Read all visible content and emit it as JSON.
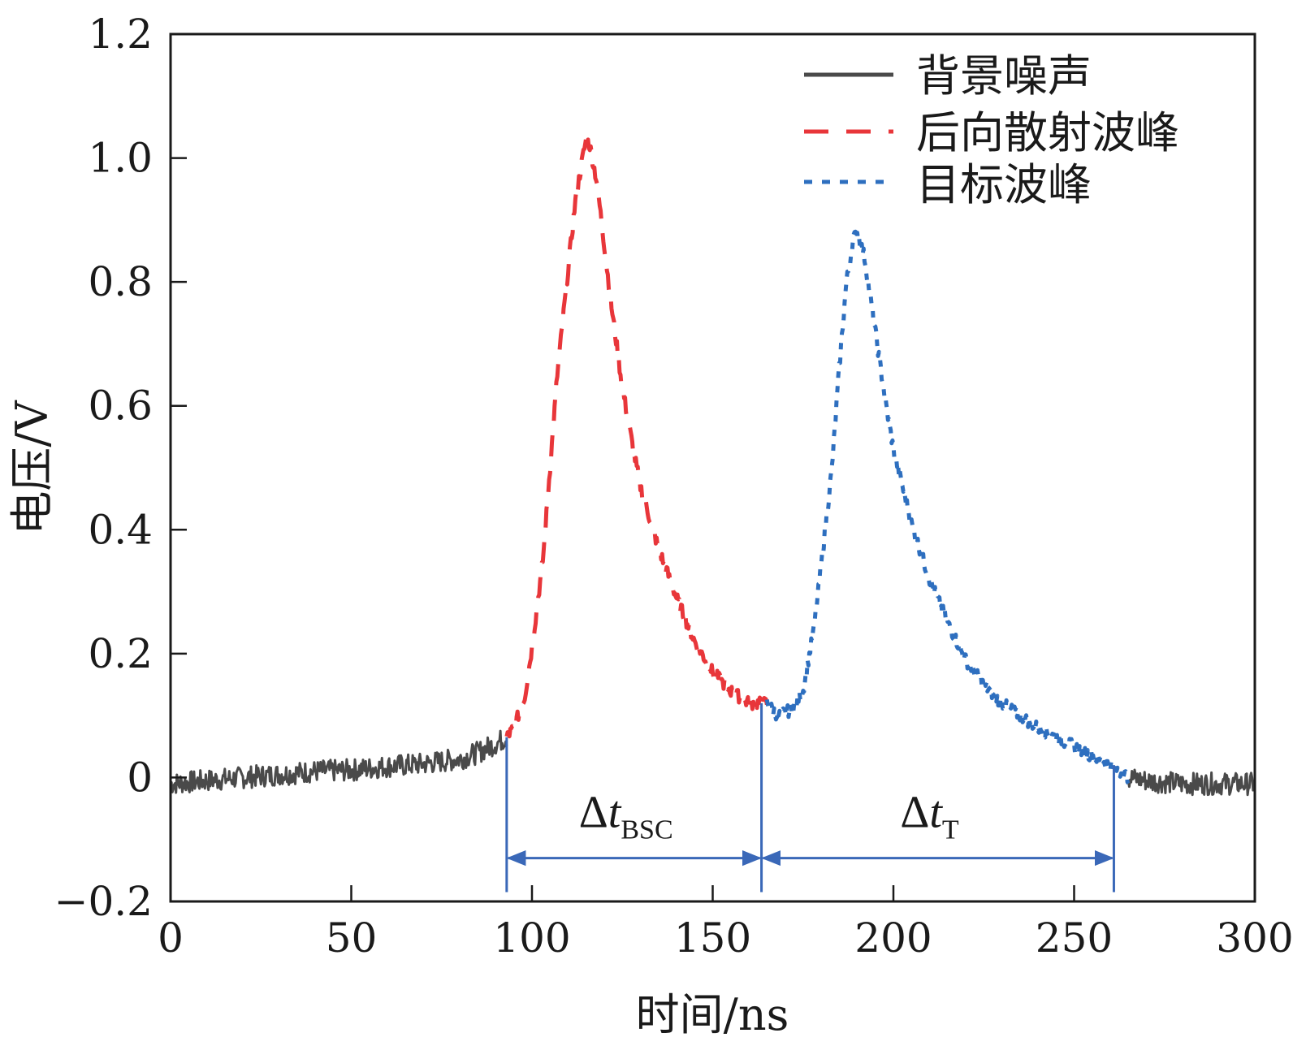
{
  "chart_data": {
    "type": "line",
    "xlabel": "时间/ns",
    "ylabel": "电压/V",
    "xlim": [
      0,
      300
    ],
    "ylim": [
      -0.2,
      1.2
    ],
    "xticks": [
      0,
      50,
      100,
      150,
      200,
      250,
      300
    ],
    "xtick_labels": [
      "0",
      "50",
      "100",
      "150",
      "200",
      "250",
      "300"
    ],
    "yticks": [
      -0.2,
      0,
      0.2,
      0.4,
      0.6,
      0.8,
      1.0,
      1.2
    ],
    "ytick_labels": [
      "−0.2",
      "0",
      "0.2",
      "0.4",
      "0.6",
      "0.8",
      "1.0",
      "1.2"
    ],
    "grid": false,
    "legend_position": "top-right",
    "series": [
      {
        "name": "背景噪声",
        "color": "#4a4a4a",
        "style": "solid",
        "x": [
          0,
          10,
          20,
          30,
          40,
          50,
          60,
          70,
          80,
          85,
          90,
          93,
          265,
          270,
          280,
          290,
          300
        ],
        "y": [
          -0.01,
          -0.005,
          0.0,
          0.005,
          0.01,
          0.012,
          0.018,
          0.022,
          0.03,
          0.04,
          0.055,
          0.065,
          0.0,
          -0.005,
          -0.01,
          -0.01,
          -0.01
        ]
      },
      {
        "name": "后向散射波峰",
        "color": "#e8363a",
        "style": "dashed",
        "x": [
          93,
          95,
          98,
          100,
          103,
          105,
          107,
          110,
          112,
          114,
          115,
          116,
          118,
          120,
          122,
          125,
          128,
          130,
          135,
          140,
          145,
          150,
          155,
          160,
          165
        ],
        "y": [
          0.065,
          0.08,
          0.13,
          0.21,
          0.35,
          0.5,
          0.65,
          0.82,
          0.93,
          1.0,
          1.03,
          1.02,
          0.96,
          0.86,
          0.76,
          0.63,
          0.53,
          0.47,
          0.37,
          0.29,
          0.22,
          0.17,
          0.14,
          0.12,
          0.12
        ]
      },
      {
        "name": "目标波峰",
        "color": "#2e6fbf",
        "style": "dotted",
        "x": [
          165,
          168,
          172,
          175,
          178,
          180,
          183,
          185,
          187,
          189,
          190,
          192,
          195,
          198,
          200,
          205,
          210,
          215,
          220,
          225,
          230,
          235,
          240,
          245,
          250,
          255,
          260,
          265
        ],
        "y": [
          0.12,
          0.1,
          0.11,
          0.14,
          0.24,
          0.34,
          0.5,
          0.66,
          0.8,
          0.87,
          0.88,
          0.84,
          0.72,
          0.6,
          0.53,
          0.41,
          0.32,
          0.25,
          0.19,
          0.15,
          0.12,
          0.1,
          0.08,
          0.065,
          0.05,
          0.035,
          0.02,
          0.0
        ]
      }
    ],
    "annotations": [
      {
        "label": "Δt",
        "subscript": "BSC",
        "x_start": 93,
        "x_end": 163.5
      },
      {
        "label": "Δt",
        "subscript": "T",
        "x_start": 163.5,
        "x_end": 261
      }
    ]
  }
}
